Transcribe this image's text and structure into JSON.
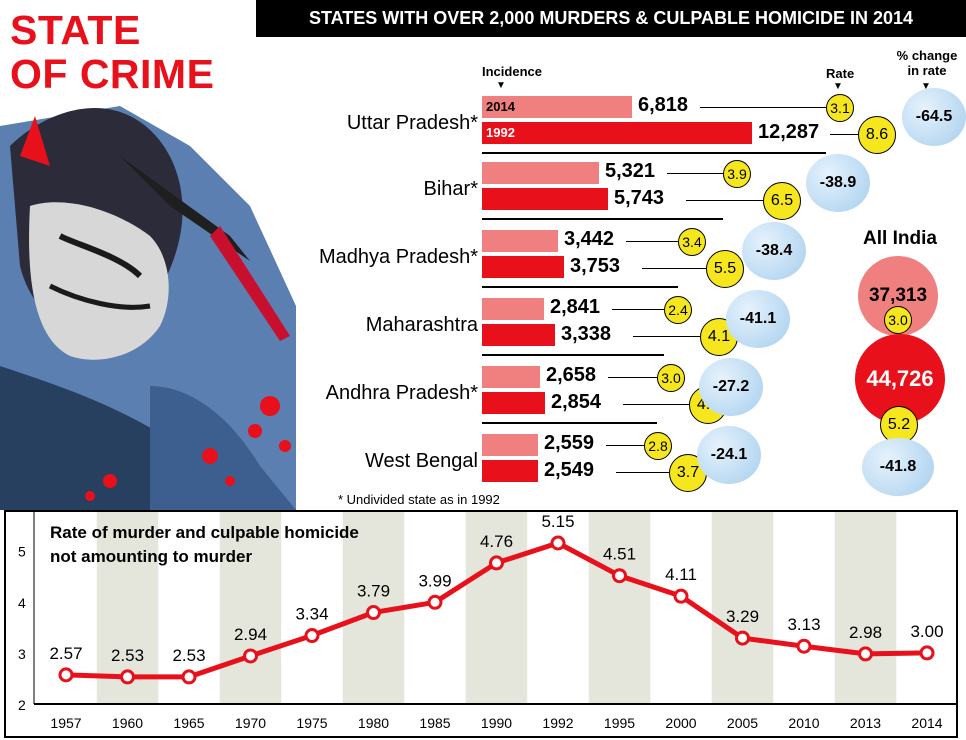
{
  "headline": {
    "line1": "STATE",
    "line2": "OF CRIME"
  },
  "banner": "STATES WITH OVER 2,000 MURDERS & CULPABLE HOMICIDE IN 2014",
  "column_heads": {
    "incidence": "Incidence",
    "rate": "Rate",
    "pct_change_1": "% change",
    "pct_change_2": "in rate"
  },
  "bar_tags": {
    "y2014": "2014",
    "y1992": "1992"
  },
  "states": [
    {
      "name": "Uttar Pradesh*",
      "inc_2014": "6,818",
      "inc_1992": "12,287",
      "inc_2014_val": 6818,
      "inc_1992_val": 12287,
      "rate_2014": "3.1",
      "rate_1992": "8.6",
      "pct_change": "-64.5"
    },
    {
      "name": "Bihar*",
      "inc_2014": "5,321",
      "inc_1992": "5,743",
      "inc_2014_val": 5321,
      "inc_1992_val": 5743,
      "rate_2014": "3.9",
      "rate_1992": "6.5",
      "pct_change": "-38.9"
    },
    {
      "name": "Madhya Pradesh*",
      "inc_2014": "3,442",
      "inc_1992": "3,753",
      "inc_2014_val": 3442,
      "inc_1992_val": 3753,
      "rate_2014": "3.4",
      "rate_1992": "5.5",
      "pct_change": "-38.4"
    },
    {
      "name": "Maharashtra",
      "inc_2014": "2,841",
      "inc_1992": "3,338",
      "inc_2014_val": 2841,
      "inc_1992_val": 3338,
      "rate_2014": "2.4",
      "rate_1992": "4.1",
      "pct_change": "-41.1"
    },
    {
      "name": "Andhra Pradesh*",
      "inc_2014": "2,658",
      "inc_1992": "2,854",
      "inc_2014_val": 2658,
      "inc_1992_val": 2854,
      "rate_2014": "3.0",
      "rate_1992": "4.2",
      "pct_change": "-27.2"
    },
    {
      "name": "West Bengal",
      "inc_2014": "2,559",
      "inc_1992": "2,549",
      "inc_2014_val": 2559,
      "inc_1992_val": 2549,
      "rate_2014": "2.8",
      "rate_1992": "3.7",
      "pct_change": "-24.1"
    }
  ],
  "all_india": {
    "label": "All India",
    "inc_2014": "37,313",
    "rate_2014": "3.0",
    "inc_1992": "44,726",
    "rate_1992": "5.2",
    "pct_change": "-41.8"
  },
  "footnote": "* Undivided state as in 1992",
  "colors": {
    "red": "#e8101a",
    "pink": "#f07f7f",
    "yellow": "#f5e61e",
    "blue": "#b9d9f2",
    "band": "#e4e6dc"
  },
  "chart_data": {
    "type": "line",
    "title": "Rate of murder and culpable homicide not amounting to murder",
    "title_lines": [
      "Rate of murder and culpable homicide",
      "not amounting to murder"
    ],
    "categories": [
      "1957",
      "1960",
      "1965",
      "1970",
      "1975",
      "1980",
      "1985",
      "1990",
      "1992",
      "1995",
      "2000",
      "2005",
      "2010",
      "2013",
      "2014"
    ],
    "values": [
      2.57,
      2.53,
      2.53,
      2.94,
      3.34,
      3.79,
      3.99,
      4.76,
      5.15,
      4.51,
      4.11,
      3.29,
      3.13,
      2.98,
      3.0
    ],
    "value_labels": [
      "2.57",
      "2.53",
      "2.53",
      "2.94",
      "3.34",
      "3.79",
      "3.99",
      "4.76",
      "5.15",
      "4.51",
      "4.11",
      "3.29",
      "3.13",
      "2.98",
      "3.00"
    ],
    "yticks": [
      "2",
      "3",
      "4",
      "5"
    ],
    "ylim": [
      2,
      5.6
    ],
    "xlabel": "",
    "ylabel": "",
    "grid": false,
    "alternating_bands": true
  }
}
